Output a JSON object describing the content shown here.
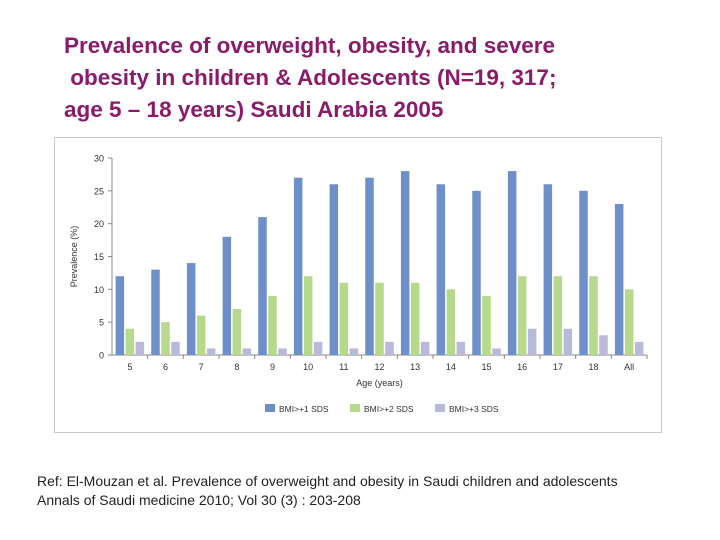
{
  "title_lines": [
    "Prevalence of overweight, obesity, and severe",
    " obesity in children & Adolescents (N=19, 317;",
    "age 5 – 18 years) Saudi Arabia 2005"
  ],
  "reference": {
    "line1": "Ref: El-Mouzan et al. Prevalence of overweight and obesity in Saudi children and adolescents",
    "line2": "Annals of Saudi medicine 2010; Vol 30 (3) : 203-208"
  },
  "chart_data": {
    "type": "bar",
    "title": "",
    "xlabel": "Age (years)",
    "ylabel": "Prevalence (%)",
    "ylim": [
      0,
      30
    ],
    "yticks": [
      0,
      5,
      10,
      15,
      20,
      25,
      30
    ],
    "grid": false,
    "legend_position": "bottom",
    "categories": [
      "5",
      "6",
      "7",
      "8",
      "9",
      "10",
      "11",
      "12",
      "13",
      "14",
      "15",
      "16",
      "17",
      "18",
      "All"
    ],
    "series": [
      {
        "name": "BMI>+1 SDS",
        "color": "#6e8fc9",
        "values": [
          12,
          13,
          14,
          18,
          21,
          27,
          26,
          27,
          28,
          26,
          25,
          28,
          26,
          25,
          23
        ]
      },
      {
        "name": "BMI>+2 SDS",
        "color": "#b6d98c",
        "values": [
          4,
          5,
          6,
          7,
          9,
          12,
          11,
          11,
          11,
          10,
          9,
          12,
          12,
          12,
          10
        ]
      },
      {
        "name": "BMI>+3 SDS",
        "color": "#b9b9da",
        "values": [
          2,
          2,
          1,
          1,
          1,
          2,
          1,
          2,
          2,
          2,
          1,
          4,
          4,
          3,
          2
        ]
      }
    ]
  }
}
